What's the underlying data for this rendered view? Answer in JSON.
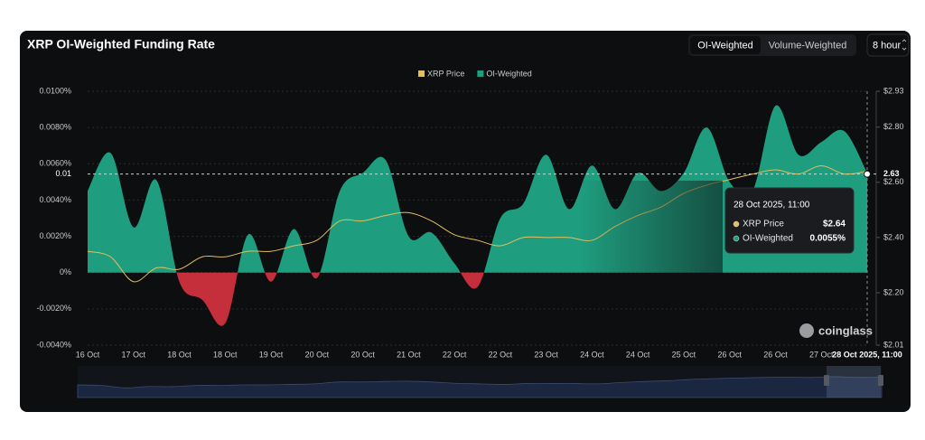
{
  "chart_data": {
    "type": "area",
    "title": "XRP OI-Weighted Funding Rate",
    "categories": [
      "16 Oct",
      null,
      "17 Oct",
      null,
      "18 Oct",
      null,
      "18 Oct",
      null,
      "19 Oct",
      null,
      "20 Oct",
      null,
      "20 Oct",
      null,
      "21 Oct",
      null,
      "22 Oct",
      null,
      "22 Oct",
      null,
      "23 Oct",
      null,
      "24 Oct",
      null,
      "24 Oct",
      null,
      "25 Oct",
      null,
      "26 Oct",
      null,
      "26 Oct",
      null,
      "27 Oct",
      null,
      "28 Oct 2025, 11:00"
    ],
    "series": [
      {
        "name": "XRP Price",
        "type": "line",
        "axis": "y2",
        "color": "#e3bf5c",
        "values": [
          2.35,
          2.33,
          2.24,
          2.29,
          2.285,
          2.33,
          2.33,
          2.35,
          2.35,
          2.37,
          2.39,
          2.46,
          2.46,
          2.48,
          2.49,
          2.46,
          2.41,
          2.39,
          2.37,
          2.4,
          2.4,
          2.4,
          2.39,
          2.44,
          2.48,
          2.51,
          2.56,
          2.59,
          2.61,
          2.63,
          2.645,
          2.63,
          2.66,
          2.63,
          2.64
        ]
      },
      {
        "name": "OI-Weighted",
        "type": "area",
        "color": "#1f9e7f",
        "negative_color": "#c52f3b",
        "values": [
          0.0045,
          0.0066,
          0.0025,
          0.0051,
          -0.0005,
          -0.0015,
          -0.0028,
          0.0021,
          -0.0005,
          0.0024,
          -0.0003,
          0.0045,
          0.0055,
          0.0062,
          0.002,
          0.0022,
          0.0005,
          -0.0008,
          0.003,
          0.0038,
          0.0065,
          0.0035,
          0.0059,
          0.0035,
          0.0055,
          0.0045,
          0.0055,
          0.008,
          0.005,
          0.0045,
          0.0092,
          0.0065,
          0.0072,
          0.0078,
          0.0055
        ]
      }
    ],
    "ylim": [
      -0.004,
      0.01
    ],
    "yticks": [
      {
        "value": 0.01,
        "label": "0.0100%"
      },
      {
        "value": 0.008,
        "label": "0.0080%"
      },
      {
        "value": 0.006,
        "label": "0.0060%"
      },
      {
        "value": 0.004,
        "label": "0.0040%"
      },
      {
        "value": 0.002,
        "label": "0.0020%"
      },
      {
        "value": 0,
        "label": "0%"
      },
      {
        "value": -0.002,
        "label": "-0.0020%"
      },
      {
        "value": -0.004,
        "label": "-0.0040%"
      }
    ],
    "y2lim": [
      2.01,
      2.93
    ],
    "y2ticks": [
      {
        "value": 2.93,
        "label": "$2.93"
      },
      {
        "value": 2.8,
        "label": "$2.80"
      },
      {
        "value": 2.6,
        "label": "$2.60"
      },
      {
        "value": 2.4,
        "label": "$2.40"
      },
      {
        "value": 2.2,
        "label": "$2.20"
      },
      {
        "value": 2.01,
        "label": "$2.01"
      }
    ],
    "grid": true,
    "legend": "top",
    "crosshair": {
      "left": {
        "value": 0.0055,
        "label": "0.01"
      },
      "right": {
        "value": 2.63,
        "label": "2.63"
      }
    },
    "tooltip": {
      "title": "28 Oct 2025, 11:00",
      "items": [
        {
          "name": "XRP Price",
          "value": 2.64,
          "label": "$2.64"
        },
        {
          "name": "OI-Weighted",
          "value": 0.0055,
          "label": "0.0055%"
        }
      ]
    }
  },
  "ui": {
    "buttons": [
      "OI-Weighted",
      "Volume-Weighted"
    ],
    "interval": "8 hour",
    "watermark": "coinglass"
  }
}
